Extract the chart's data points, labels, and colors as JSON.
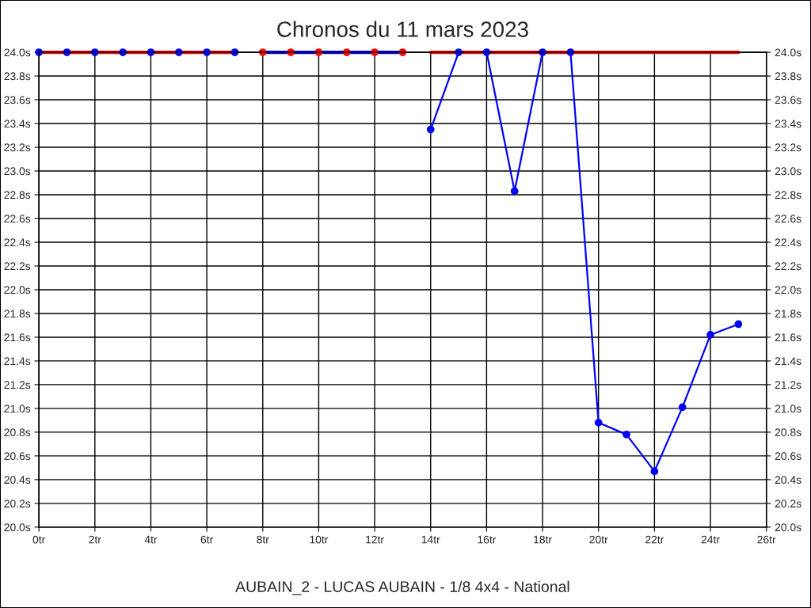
{
  "chart_data": {
    "type": "line",
    "title": "Chronos du 11 mars 2023",
    "xlabel": "AUBAIN_2 - LUCAS AUBAIN - 1/8 4x4 - National",
    "xlim": [
      0,
      26
    ],
    "xticks": [
      {
        "value": 0,
        "label": "0tr"
      },
      {
        "value": 2,
        "label": "2tr"
      },
      {
        "value": 4,
        "label": "4tr"
      },
      {
        "value": 6,
        "label": "6tr"
      },
      {
        "value": 8,
        "label": "8tr"
      },
      {
        "value": 10,
        "label": "10tr"
      },
      {
        "value": 12,
        "label": "12tr"
      },
      {
        "value": 14,
        "label": "14tr"
      },
      {
        "value": 16,
        "label": "16tr"
      },
      {
        "value": 18,
        "label": "18tr"
      },
      {
        "value": 20,
        "label": "20tr"
      },
      {
        "value": 22,
        "label": "22tr"
      },
      {
        "value": 24,
        "label": "24tr"
      },
      {
        "value": 26,
        "label": "26tr"
      }
    ],
    "ylim": [
      20.0,
      24.0
    ],
    "yticks": [
      {
        "value": 20.0,
        "label": "20.0s"
      },
      {
        "value": 20.2,
        "label": "20.2s"
      },
      {
        "value": 20.4,
        "label": "20.4s"
      },
      {
        "value": 20.6,
        "label": "20.6s"
      },
      {
        "value": 20.8,
        "label": "20.8s"
      },
      {
        "value": 21.0,
        "label": "21.0s"
      },
      {
        "value": 21.2,
        "label": "21.2s"
      },
      {
        "value": 21.4,
        "label": "21.4s"
      },
      {
        "value": 21.6,
        "label": "21.6s"
      },
      {
        "value": 21.8,
        "label": "21.8s"
      },
      {
        "value": 22.0,
        "label": "22.0s"
      },
      {
        "value": 22.2,
        "label": "22.2s"
      },
      {
        "value": 22.4,
        "label": "22.4s"
      },
      {
        "value": 22.6,
        "label": "22.6s"
      },
      {
        "value": 22.8,
        "label": "22.8s"
      },
      {
        "value": 23.0,
        "label": "23.0s"
      },
      {
        "value": 23.2,
        "label": "23.2s"
      },
      {
        "value": 23.4,
        "label": "23.4s"
      },
      {
        "value": 23.6,
        "label": "23.6s"
      },
      {
        "value": 23.8,
        "label": "23.8s"
      },
      {
        "value": 24.0,
        "label": "24.0s"
      }
    ],
    "y2lim": [
      20.0,
      24.0
    ],
    "y2ticks": [
      {
        "value": 20.0,
        "label": "20.0s"
      },
      {
        "value": 20.2,
        "label": "20.2s"
      },
      {
        "value": 20.4,
        "label": "20.4s"
      },
      {
        "value": 20.6,
        "label": "20.6s"
      },
      {
        "value": 20.8,
        "label": "20.8s"
      },
      {
        "value": 21.0,
        "label": "21.0s"
      },
      {
        "value": 21.2,
        "label": "21.2s"
      },
      {
        "value": 21.4,
        "label": "21.4s"
      },
      {
        "value": 21.6,
        "label": "21.6s"
      },
      {
        "value": 21.8,
        "label": "21.8s"
      },
      {
        "value": 22.0,
        "label": "22.0s"
      },
      {
        "value": 22.2,
        "label": "22.2s"
      },
      {
        "value": 22.4,
        "label": "22.4s"
      },
      {
        "value": 22.6,
        "label": "22.6s"
      },
      {
        "value": 22.8,
        "label": "22.8s"
      },
      {
        "value": 23.0,
        "label": "23.0s"
      },
      {
        "value": 23.2,
        "label": "23.2s"
      },
      {
        "value": 23.4,
        "label": "23.4s"
      },
      {
        "value": 23.6,
        "label": "23.6s"
      },
      {
        "value": 23.8,
        "label": "23.8s"
      },
      {
        "value": 24.0,
        "label": "24.0s"
      }
    ],
    "grid": true,
    "series": [
      {
        "type": "scatter",
        "color": "#0000ff",
        "marker": "circle",
        "x": [
          0,
          1,
          2,
          3,
          4,
          5,
          6,
          7
        ],
        "values": [
          24.0,
          24.0,
          24.0,
          24.0,
          24.0,
          24.0,
          24.0,
          24.0
        ]
      },
      {
        "color": "#ff0000",
        "x": [
          0,
          7
        ],
        "values": [
          24.0,
          24.0
        ]
      },
      {
        "type": "scatter",
        "color": "#ff0000",
        "marker": "circle",
        "x": [
          8,
          9,
          10,
          11,
          12,
          13
        ],
        "values": [
          24.0,
          24.0,
          24.0,
          24.0,
          24.0,
          24.0
        ]
      },
      {
        "color": "#0000ff",
        "x": [
          8,
          13
        ],
        "values": [
          24.0,
          24.0
        ]
      },
      {
        "color": "#0000ff",
        "marker": "circle",
        "x": [
          14,
          15,
          16,
          17,
          18,
          19,
          20,
          21,
          22,
          23,
          24,
          25
        ],
        "values": [
          23.35,
          24.0,
          24.0,
          22.83,
          24.0,
          24.0,
          20.88,
          20.78,
          20.47,
          21.01,
          21.62,
          21.71
        ]
      },
      {
        "color": "#ff0000",
        "x": [
          14,
          25
        ],
        "values": [
          24.0,
          24.0
        ]
      }
    ]
  }
}
